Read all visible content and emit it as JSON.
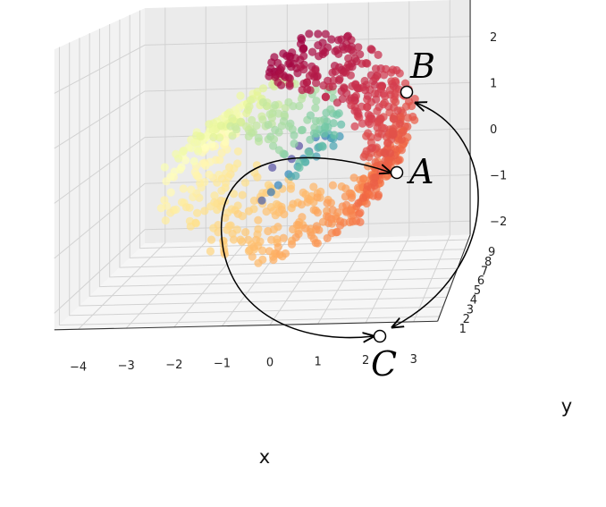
{
  "chart_data": {
    "type": "scatter",
    "projection": "3d",
    "title": "",
    "xlabel": "x",
    "ylabel": "y",
    "zlabel": "",
    "xlim": [
      -4.5,
      3.5
    ],
    "ylim": [
      0.5,
      9.5
    ],
    "zlim": [
      -2.3,
      2.8
    ],
    "xticks": [
      "−4",
      "−3",
      "−2",
      "−1",
      "0",
      "1",
      "2",
      "3"
    ],
    "yticks": [
      "1",
      "2",
      "3",
      "4",
      "5",
      "6",
      "7",
      "8",
      "9"
    ],
    "zticks": [
      "−2",
      "−1",
      "0",
      "1",
      "2"
    ],
    "colormap": "Spectral",
    "grid": true,
    "series": [
      {
        "shape": "swiss roll (spiral sheet)",
        "t_range": [
          4.7,
          14.1
        ],
        "approx_point_count": 850
      }
    ],
    "annotations": [
      {
        "label": "A",
        "x": 2.0,
        "z": 0.5
      },
      {
        "label": "B",
        "x": 2.3,
        "z": 2.0
      },
      {
        "label": "C",
        "x": 1.6,
        "z": -2.0
      }
    ],
    "paths": [
      {
        "from": "A",
        "to": "C",
        "via": "long arc around the inside of the roll"
      },
      {
        "from": "B",
        "to": "C",
        "via": "outer arc"
      },
      {
        "from": "C",
        "to": "B",
        "via": "outer arc"
      }
    ]
  }
}
